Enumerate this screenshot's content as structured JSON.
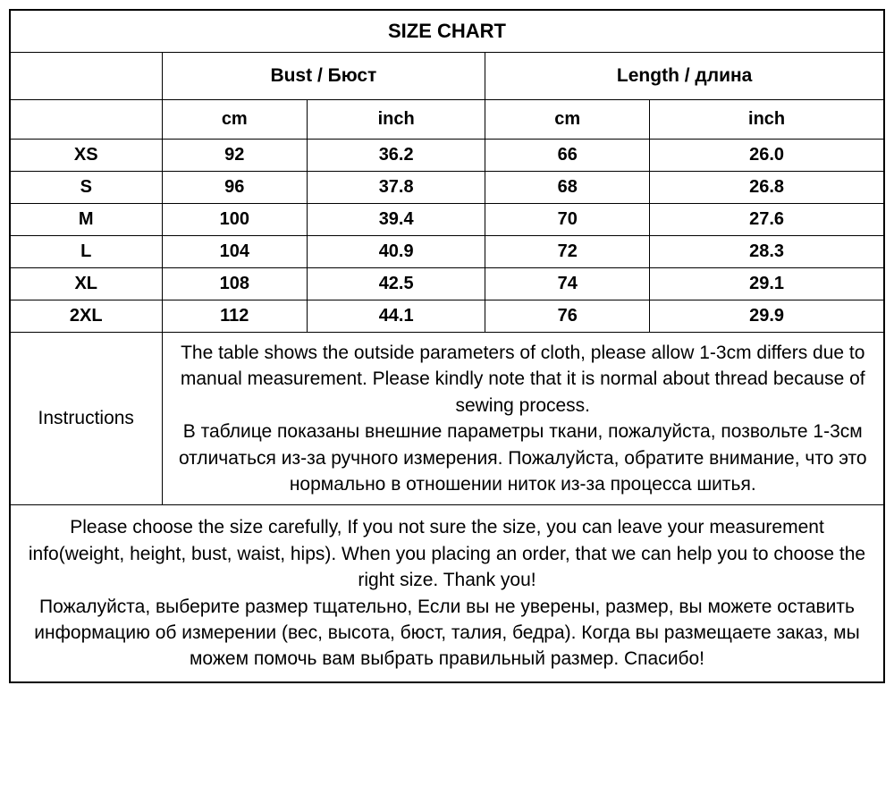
{
  "title": "SIZE CHART",
  "group_headers": {
    "bust": "Bust / Бюст",
    "length": "Length / длина"
  },
  "unit_headers": {
    "cm": "cm",
    "inch": "inch"
  },
  "rows": [
    {
      "size": "XS",
      "bust_cm": "92",
      "bust_in": "36.2",
      "len_cm": "66",
      "len_in": "26.0"
    },
    {
      "size": "S",
      "bust_cm": "96",
      "bust_in": "37.8",
      "len_cm": "68",
      "len_in": "26.8"
    },
    {
      "size": "M",
      "bust_cm": "100",
      "bust_in": "39.4",
      "len_cm": "70",
      "len_in": "27.6"
    },
    {
      "size": "L",
      "bust_cm": "104",
      "bust_in": "40.9",
      "len_cm": "72",
      "len_in": "28.3"
    },
    {
      "size": "XL",
      "bust_cm": "108",
      "bust_in": "42.5",
      "len_cm": "74",
      "len_in": "29.1"
    },
    {
      "size": "2XL",
      "bust_cm": "112",
      "bust_in": "44.1",
      "len_cm": "76",
      "len_in": "29.9"
    }
  ],
  "instructions_label": "Instructions",
  "instructions_text": "The table shows the outside parameters of cloth, please allow 1-3cm differs due to manual measurement. Please kindly note that it is normal about thread because of sewing process.\nВ таблице показаны внешние параметры ткани, пожалуйста, позвольте 1-3см отличаться из-за ручного измерения. Пожалуйста, обратите внимание, что это нормально в отношении ниток из-за процесса шитья.",
  "footer_text": "Please choose the size carefully, If you not sure the size, you can leave your measurement info(weight, height, bust, waist, hips). When you placing an order, that we can help you to choose the right size. Thank you!\nПожалуйста, выберите размер тщательно, Если вы не уверены, размер, вы можете оставить информацию об измерении (вес, высота, бюст, талия, бедра). Когда вы размещаете заказ, мы можем помочь вам выбрать правильный размер. Спасибо!",
  "style": {
    "border_color": "#000000",
    "background": "#ffffff",
    "font_family": "Arial",
    "title_fontsize": 22,
    "header_fontsize": 21,
    "body_fontsize": 20,
    "note_fontsize": 21
  }
}
